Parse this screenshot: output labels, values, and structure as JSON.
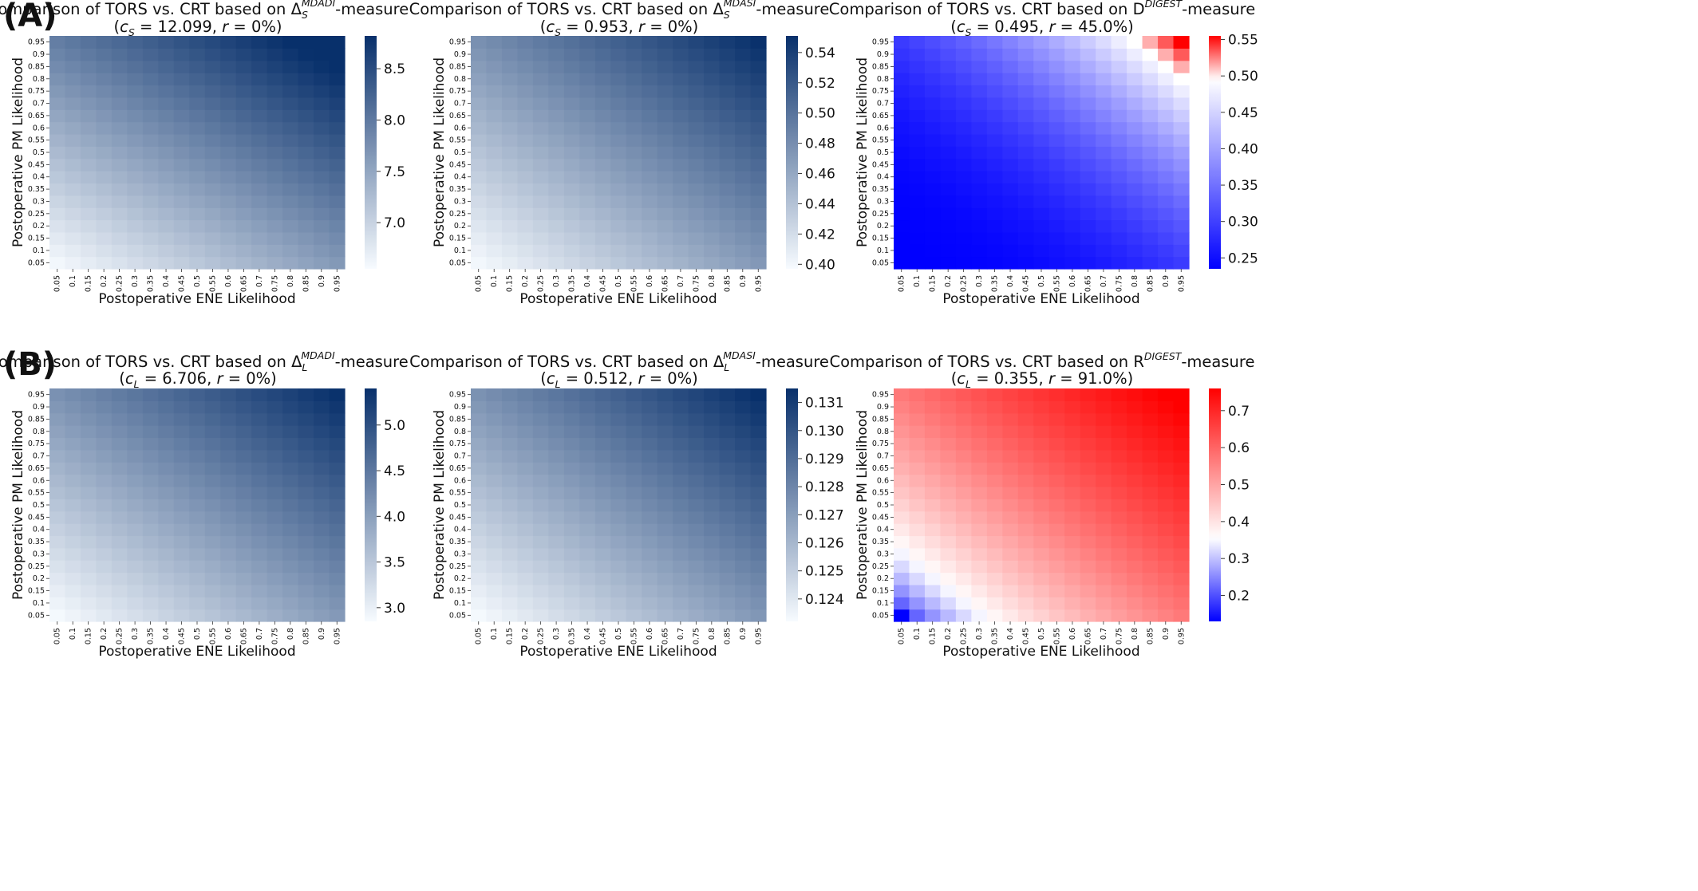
{
  "figure": {
    "panel_labels": [
      "(A)",
      "(B)"
    ]
  },
  "axis_ticks": [
    "0.05",
    "0.1",
    "0.15",
    "0.2",
    "0.25",
    "0.3",
    "0.35",
    "0.4",
    "0.45",
    "0.5",
    "0.55",
    "0.6",
    "0.65",
    "0.7",
    "0.75",
    "0.8",
    "0.85",
    "0.9",
    "0.95"
  ],
  "chart_data": [
    {
      "type": "heatmap",
      "panel": "A",
      "title": "Comparison of TORS vs. CRT based on",
      "title_symbol": "Δ",
      "title_sub": "S",
      "title_sup": "MDADI",
      "title_suffix": "-measure",
      "subtitle": "(c_S = 12.099, r = 0%)",
      "subtitle_parts": {
        "c": "c",
        "c_sub": "S",
        "c_value": "12.099",
        "r": "r",
        "r_value": "0%"
      },
      "xlabel": "Postoperative ENE Likelihood",
      "ylabel": "Postoperative PM Likelihood",
      "colormap": "Blues",
      "colors": [
        "#f7fbff",
        "#08306b"
      ],
      "vmin": 6.55,
      "vmax": 8.82,
      "colorbar_ticks": [
        "7.0",
        "7.5",
        "8.0",
        "8.5"
      ],
      "model": {
        "base": 6.6,
        "a": 1.05,
        "b": 1.35,
        "c": 0.0,
        "gamma": 1.0
      },
      "ene_levels": [
        0.05,
        0.95
      ],
      "pm_levels": [
        0.05,
        0.95
      ]
    },
    {
      "type": "heatmap",
      "panel": "A",
      "title": "Comparison of TORS vs. CRT based on",
      "title_symbol": "Δ",
      "title_sub": "S",
      "title_sup": "MDASI",
      "title_suffix": "-measure",
      "subtitle": "(c_S = 0.953, r = 0%)",
      "subtitle_parts": {
        "c": "c",
        "c_sub": "S",
        "c_value": "0.953",
        "r": "r",
        "r_value": "0%"
      },
      "xlabel": "Postoperative ENE Likelihood",
      "ylabel": "Postoperative PM Likelihood",
      "colormap": "Blues",
      "colors": [
        "#f7fbff",
        "#08306b"
      ],
      "vmin": 0.397,
      "vmax": 0.551,
      "colorbar_ticks": [
        "0.40",
        "0.42",
        "0.44",
        "0.46",
        "0.48",
        "0.50",
        "0.52",
        "0.54"
      ],
      "model": {
        "base": 0.4,
        "a": 0.072,
        "b": 0.078,
        "c": 0.0,
        "gamma": 1.0
      },
      "ene_levels": [
        0.05,
        0.95
      ],
      "pm_levels": [
        0.05,
        0.95
      ]
    },
    {
      "type": "heatmap",
      "panel": "A",
      "title": "Comparison of TORS vs. CRT based on",
      "title_symbol": "D",
      "title_sub": "",
      "title_sup": "DIGEST",
      "title_suffix": "-measure",
      "subtitle": "(c_S = 0.495, r = 45.0%)",
      "subtitle_parts": {
        "c": "c",
        "c_sub": "S",
        "c_value": "0.495",
        "r": "r",
        "r_value": "45.0%"
      },
      "xlabel": "Postoperative ENE Likelihood",
      "ylabel": "Postoperative PM Likelihood",
      "colormap": "bwr",
      "colors": [
        "#0000ff",
        "#ffffff",
        "#ff0000"
      ],
      "vmin": 0.235,
      "vmax": 0.555,
      "center": 0.495,
      "colorbar_ticks": [
        "0.25",
        "0.30",
        "0.35",
        "0.40",
        "0.45",
        "0.50",
        "0.55"
      ],
      "model": {
        "base": 0.235,
        "a": 0.0,
        "b": 0.0,
        "c": 0.32,
        "gamma": 2.4
      },
      "ene_levels": [
        0.05,
        0.95
      ],
      "pm_levels": [
        0.05,
        0.95
      ]
    },
    {
      "type": "heatmap",
      "panel": "B",
      "title": "Comparison of TORS vs. CRT based on",
      "title_symbol": "Δ",
      "title_sub": "L",
      "title_sup": "MDADI",
      "title_suffix": "-measure",
      "subtitle": "(c_L = 6.706, r = 0%)",
      "subtitle_parts": {
        "c": "c",
        "c_sub": "L",
        "c_value": "6.706",
        "r": "r",
        "r_value": "0%"
      },
      "xlabel": "Postoperative ENE Likelihood",
      "ylabel": "Postoperative PM Likelihood",
      "colormap": "Blues",
      "colors": [
        "#f7fbff",
        "#08306b"
      ],
      "vmin": 2.85,
      "vmax": 5.4,
      "colorbar_ticks": [
        "3.0",
        "3.5",
        "4.0",
        "4.5",
        "5.0"
      ],
      "model": {
        "base": 2.88,
        "a": 1.2,
        "b": 1.3,
        "c": 0.0,
        "gamma": 1.0
      },
      "ene_levels": [
        0.05,
        0.95
      ],
      "pm_levels": [
        0.05,
        0.95
      ]
    },
    {
      "type": "heatmap",
      "panel": "B",
      "title": "Comparison of TORS vs. CRT based on",
      "title_symbol": "Δ",
      "title_sub": "L",
      "title_sup": "MDASI",
      "title_suffix": "-measure",
      "subtitle": "(c_L = 0.512, r = 0%)",
      "subtitle_parts": {
        "c": "c",
        "c_sub": "L",
        "c_value": "0.512",
        "r": "r",
        "r_value": "0%"
      },
      "xlabel": "Postoperative ENE Likelihood",
      "ylabel": "Postoperative PM Likelihood",
      "colormap": "Blues",
      "colors": [
        "#f7fbff",
        "#08306b"
      ],
      "vmin": 0.1232,
      "vmax": 0.1315,
      "colorbar_ticks": [
        "0.124",
        "0.125",
        "0.126",
        "0.127",
        "0.128",
        "0.129",
        "0.130",
        "0.131"
      ],
      "model": {
        "base": 0.1233,
        "a": 0.004,
        "b": 0.0042,
        "c": 0.0,
        "gamma": 1.0
      },
      "ene_levels": [
        0.05,
        0.95
      ],
      "pm_levels": [
        0.05,
        0.95
      ]
    },
    {
      "type": "heatmap",
      "panel": "B",
      "title": "Comparison of TORS vs. CRT based on",
      "title_symbol": "R",
      "title_sub": "",
      "title_sup": "DIGEST",
      "title_suffix": "-measure",
      "subtitle": "(c_L = 0.355, r = 91.0%)",
      "subtitle_parts": {
        "c": "c",
        "c_sub": "L",
        "c_value": "0.355",
        "r": "r",
        "r_value": "91.0%"
      },
      "xlabel": "Postoperative ENE Likelihood",
      "ylabel": "Postoperative PM Likelihood",
      "colormap": "bwr",
      "colors": [
        "#0000ff",
        "#ffffff",
        "#ff0000"
      ],
      "vmin": 0.13,
      "vmax": 0.76,
      "center": 0.355,
      "colorbar_ticks": [
        "0.2",
        "0.3",
        "0.4",
        "0.5",
        "0.6",
        "0.7"
      ],
      "model": {
        "base": 0.13,
        "a": 0.0,
        "b": 0.0,
        "c": 0.64,
        "gamma": 0.55
      },
      "ene_levels": [
        0.05,
        0.95
      ],
      "pm_levels": [
        0.05,
        0.95
      ]
    }
  ]
}
